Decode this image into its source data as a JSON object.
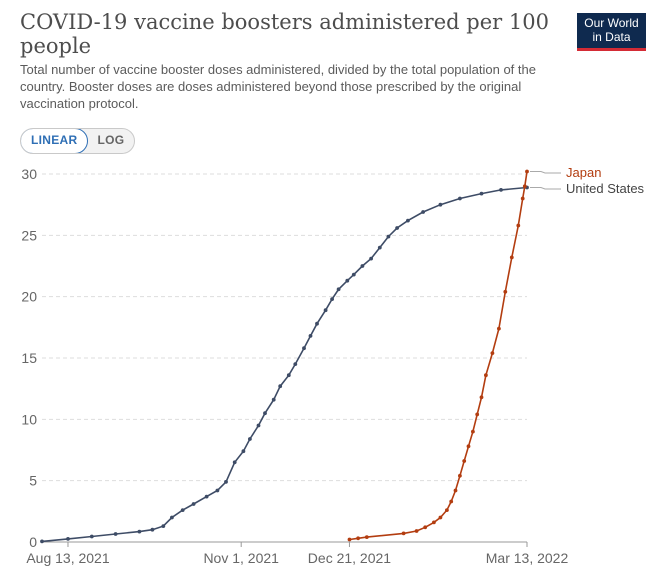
{
  "header": {
    "title": "COVID-19 vaccine boosters administered per 100 people",
    "subtitle": "Total number of vaccine booster doses administered, divided by the total population of the country. Booster doses are doses administered beyond those prescribed by the original vaccination protocol."
  },
  "logo": {
    "line1": "Our World",
    "line2": "in Data"
  },
  "scale_toggle": {
    "linear_label": "LINEAR",
    "log_label": "LOG",
    "selected": "LINEAR"
  },
  "colors": {
    "united_states": "#3e4c66",
    "japan": "#b33d10",
    "grid": "#dddddd"
  },
  "chart_data": {
    "type": "line",
    "title": "COVID-19 vaccine boosters administered per 100 people",
    "ylim": [
      0,
      30
    ],
    "y_ticks": [
      0,
      5,
      10,
      15,
      20,
      25,
      30
    ],
    "xlim": [
      "2021-08-01",
      "2022-03-13"
    ],
    "x_ticks": [
      "2021-08-13",
      "2021-11-01",
      "2021-12-21",
      "2022-03-13"
    ],
    "x_tick_labels": [
      "Aug 13, 2021",
      "Nov 1, 2021",
      "Dec 21, 2021",
      "Mar 13, 2022"
    ],
    "grid": "horizontal dashed",
    "legend": "inline labels at line ends (right)",
    "series": [
      {
        "name": "United States",
        "color": "#3e4c66",
        "points": [
          [
            "2021-08-01",
            0.05
          ],
          [
            "2021-08-13",
            0.25
          ],
          [
            "2021-08-24",
            0.45
          ],
          [
            "2021-09-04",
            0.65
          ],
          [
            "2021-09-15",
            0.85
          ],
          [
            "2021-09-21",
            1.0
          ],
          [
            "2021-09-26",
            1.3
          ],
          [
            "2021-09-30",
            2.0
          ],
          [
            "2021-10-05",
            2.6
          ],
          [
            "2021-10-10",
            3.1
          ],
          [
            "2021-10-16",
            3.7
          ],
          [
            "2021-10-21",
            4.2
          ],
          [
            "2021-10-25",
            4.9
          ],
          [
            "2021-10-29",
            6.5
          ],
          [
            "2021-11-02",
            7.4
          ],
          [
            "2021-11-05",
            8.4
          ],
          [
            "2021-11-09",
            9.5
          ],
          [
            "2021-11-12",
            10.5
          ],
          [
            "2021-11-16",
            11.6
          ],
          [
            "2021-11-19",
            12.7
          ],
          [
            "2021-11-23",
            13.6
          ],
          [
            "2021-11-26",
            14.5
          ],
          [
            "2021-11-30",
            15.8
          ],
          [
            "2021-12-03",
            16.8
          ],
          [
            "2021-12-06",
            17.8
          ],
          [
            "2021-12-10",
            18.9
          ],
          [
            "2021-12-13",
            19.8
          ],
          [
            "2021-12-16",
            20.6
          ],
          [
            "2021-12-20",
            21.3
          ],
          [
            "2021-12-23",
            21.8
          ],
          [
            "2021-12-27",
            22.5
          ],
          [
            "2021-12-31",
            23.1
          ],
          [
            "2022-01-04",
            24.0
          ],
          [
            "2022-01-08",
            24.9
          ],
          [
            "2022-01-12",
            25.6
          ],
          [
            "2022-01-17",
            26.2
          ],
          [
            "2022-01-24",
            26.9
          ],
          [
            "2022-02-01",
            27.5
          ],
          [
            "2022-02-10",
            28.0
          ],
          [
            "2022-02-20",
            28.4
          ],
          [
            "2022-03-01",
            28.7
          ],
          [
            "2022-03-13",
            28.9
          ]
        ]
      },
      {
        "name": "Japan",
        "color": "#b33d10",
        "points": [
          [
            "2021-12-21",
            0.2
          ],
          [
            "2021-12-25",
            0.3
          ],
          [
            "2021-12-29",
            0.4
          ],
          [
            "2022-01-15",
            0.7
          ],
          [
            "2022-01-21",
            0.9
          ],
          [
            "2022-01-25",
            1.2
          ],
          [
            "2022-01-29",
            1.6
          ],
          [
            "2022-02-01",
            2.0
          ],
          [
            "2022-02-04",
            2.6
          ],
          [
            "2022-02-06",
            3.3
          ],
          [
            "2022-02-08",
            4.2
          ],
          [
            "2022-02-10",
            5.4
          ],
          [
            "2022-02-12",
            6.6
          ],
          [
            "2022-02-14",
            7.8
          ],
          [
            "2022-02-16",
            9.0
          ],
          [
            "2022-02-18",
            10.4
          ],
          [
            "2022-02-20",
            11.8
          ],
          [
            "2022-02-22",
            13.6
          ],
          [
            "2022-02-25",
            15.4
          ],
          [
            "2022-02-28",
            17.4
          ],
          [
            "2022-03-03",
            20.4
          ],
          [
            "2022-03-06",
            23.2
          ],
          [
            "2022-03-09",
            25.8
          ],
          [
            "2022-03-11",
            28.0
          ],
          [
            "2022-03-12",
            29.0
          ],
          [
            "2022-03-13",
            30.2
          ]
        ]
      }
    ]
  }
}
